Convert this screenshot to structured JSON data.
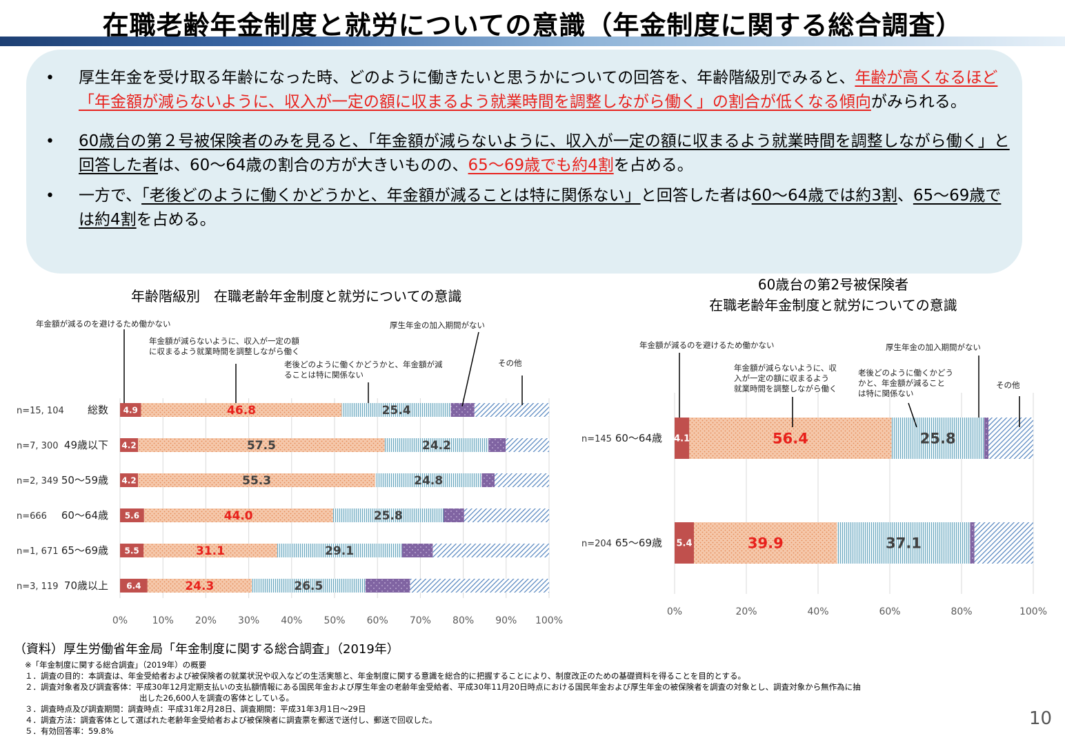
{
  "page": {
    "title": "在職老齢年金制度と就労についての意識（年金制度に関する総合調査）",
    "page_number": "10"
  },
  "summary": {
    "bullets": [
      {
        "segments": [
          {
            "text": "厚生年金を受け取る年齢になった時、どのように働きたいと思うかについての回答を、年齢階級別でみると、",
            "style": "plain"
          },
          {
            "text": "年齢が高くなるほど「年金額が減らないように、収入が一定の額に収まるよう就業時間を調整しながら働く」の割合が低くなる傾向",
            "style": "red"
          },
          {
            "text": "がみられる。",
            "style": "plain"
          }
        ]
      },
      {
        "segments": [
          {
            "text": "60歳台の第２号被保険者のみを見ると、",
            "style": "u"
          },
          {
            "text": "「年金額が減らないように、収入が一定の額に収まるよう就業時間を調整しながら働く」と回答した者",
            "style": "u"
          },
          {
            "text": "は、60～64歳の割合の方が大きいものの、",
            "style": "plain"
          },
          {
            "text": "65～69歳でも約4割",
            "style": "red"
          },
          {
            "text": "を占める。",
            "style": "plain"
          }
        ]
      },
      {
        "segments": [
          {
            "text": "一方で、",
            "style": "plain"
          },
          {
            "text": "「老後どのように働くかどうかと、年金額が減ることは特に関係ない」",
            "style": "u"
          },
          {
            "text": "と回答した者は",
            "style": "plain"
          },
          {
            "text": "60～64歳では約3割",
            "style": "u"
          },
          {
            "text": "、",
            "style": "plain"
          },
          {
            "text": "65～69歳では約4割",
            "style": "u"
          },
          {
            "text": "を占める。",
            "style": "plain"
          }
        ]
      }
    ]
  },
  "chart_data": [
    {
      "type": "bar",
      "orientation": "horizontal",
      "stacked": true,
      "title": "年齢階級別　在職老齢年金制度と就労についての意識",
      "categories": [
        "総数",
        "49歳以下",
        "50～59歳",
        "60～64歳",
        "65～69歳",
        "70歳以上"
      ],
      "n_labels": [
        "n=15, 104",
        "n=7, 300",
        "n=2, 349",
        "n=666",
        "n=1, 671",
        "n=3, 119"
      ],
      "series": [
        {
          "name": "年金額が減るのを避けるため働かない",
          "values": [
            4.9,
            4.2,
            4.2,
            5.6,
            5.5,
            6.4
          ]
        },
        {
          "name": "年金額が減らないように、収入が一定の額に収まるよう就業時間を調整しながら働く",
          "values": [
            46.8,
            57.5,
            55.3,
            44.0,
            31.1,
            24.3
          ]
        },
        {
          "name": "老後どのように働くかどうかと、年金額が減ることは特に関係ない",
          "values": [
            25.4,
            24.2,
            24.8,
            25.8,
            29.1,
            26.5
          ]
        },
        {
          "name": "厚生年金の加入期間がない",
          "values": [
            5.5,
            4.0,
            3.0,
            4.8,
            7.2,
            10.4
          ]
        },
        {
          "name": "その他",
          "values": [
            17.4,
            10.1,
            12.7,
            19.8,
            27.1,
            32.4
          ]
        }
      ],
      "data_labels": [
        [
          "4.9",
          "46.8",
          "25.4"
        ],
        [
          "4.2",
          "57.5",
          "24.2"
        ],
        [
          "4.2",
          "55.3",
          "24.8"
        ],
        [
          "5.6",
          "44.0",
          "25.8"
        ],
        [
          "5.5",
          "31.1",
          "29.1"
        ],
        [
          "6.4",
          "24.3",
          "26.5"
        ]
      ],
      "red_label_rows": [
        0,
        3,
        4,
        5
      ],
      "xlim": [
        0,
        100
      ],
      "x_ticks": [
        "0%",
        "10%",
        "20%",
        "30%",
        "40%",
        "50%",
        "60%",
        "70%",
        "80%",
        "90%",
        "100%"
      ],
      "callouts": [
        {
          "text": "年金額が減るのを避けるため働かない"
        },
        {
          "text": "年金額が減らないように、収入が一定の額\nに収まるよう就業時間を調整しながら働く"
        },
        {
          "text": "老後どのように働くかどうかと、年金額が減\nることは特に関係ない"
        },
        {
          "text": "厚生年金の加入期間がない"
        },
        {
          "text": "その他"
        }
      ],
      "grid": true
    },
    {
      "type": "bar",
      "orientation": "horizontal",
      "stacked": true,
      "title": "60歳台の第2号被保険者\n在職老齢年金制度と就労についての意識",
      "categories": [
        "60～64歳",
        "65～69歳"
      ],
      "n_labels": [
        "n=145",
        "n=204"
      ],
      "series": [
        {
          "name": "年金額が減るのを避けるため働かない",
          "values": [
            4.1,
            5.4
          ]
        },
        {
          "name": "年金額が減らないように、収入が一定の額に収まるよう就業時間を調整しながら働く",
          "values": [
            56.4,
            39.9
          ]
        },
        {
          "name": "老後どのように働くかどうかと、年金額が減ることは特に関係ない",
          "values": [
            25.8,
            37.1
          ]
        },
        {
          "name": "厚生年金の加入期間がない",
          "values": [
            1.2,
            1.2
          ]
        },
        {
          "name": "その他",
          "values": [
            12.5,
            16.4
          ]
        }
      ],
      "data_labels": [
        [
          "4.1",
          "56.4",
          "25.8"
        ],
        [
          "5.4",
          "39.9",
          "37.1"
        ]
      ],
      "red_label_rows": [
        0,
        1
      ],
      "xlim": [
        0,
        100
      ],
      "x_ticks": [
        "0%",
        "20%",
        "40%",
        "60%",
        "80%",
        "100%"
      ],
      "callouts": [
        {
          "text": "年金額が減るのを避けるため働かない"
        },
        {
          "text": "年金額が減らないように、収\n入が一定の額に収まるよう\n就業時間を調整しながら働く"
        },
        {
          "text": "老後どのように働くかどう\nかと、年金額が減ること\nは特に関係ない"
        },
        {
          "text": "厚生年金の加入期間がない"
        },
        {
          "text": "その他"
        }
      ],
      "grid": true
    }
  ],
  "colors": {
    "s1": "#c0504d",
    "s2": "#f5c8ab",
    "s2_dot": "#e58a55",
    "s3": "#d4eaf0",
    "s3_line": "#6aa6be",
    "s4": "#8064a2",
    "s5_line": "#4f81bd",
    "red_text": "#e8211c",
    "dark_text": "#404040"
  },
  "source": {
    "main": "（資料）厚生労働省年金局「年金制度に関する総合調査」（2019年）",
    "notes": [
      "※「年金制度に関する総合調査」（2019年）の概要",
      "１．調査の目的：本調査は、年金受給者および被保険者の就業状況や収入などの生活実態と、年金制度に関する意識を総合的に把握することにより、制度改正のための基礎資料を得ることを目的とする。",
      "２．調査対象者及び調査客体：平成30年12月定期支払いの支払額情報にある国民年金および厚生年金の老齢年金受給者、平成30年11月20日時点における国民年金および厚生年金の被保険者を調査の対象とし、調査対象から無作為に抽",
      "出した26,600人を調査の客体としている。",
      "３．調査時点及び調査期間：調査時点：平成31年2月28日、調査期間：平成31年3月1日～29日",
      "４．調査方法：調査客体として選ばれた老齢年金受給者および被保険者に調査票を郵送で送付し、郵送で回収した。",
      "５．有効回答率：59.8%"
    ]
  }
}
